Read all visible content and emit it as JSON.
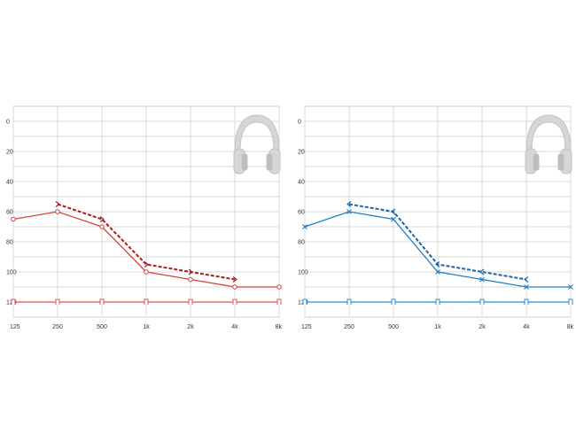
{
  "chart_data": [
    {
      "type": "line",
      "ear": "right",
      "categories": [
        "125",
        "250",
        "500",
        "1k",
        "2k",
        "4k",
        "8k"
      ],
      "y_ticks": [
        "0",
        "20",
        "40",
        "60",
        "80",
        "100",
        "120"
      ],
      "ylim": [
        0,
        120
      ],
      "y_inverted": true,
      "grid": true,
      "series": [
        {
          "style": "solid",
          "marker": "circle",
          "color": "#d0463c",
          "values": [
            65,
            60,
            70,
            100,
            105,
            110,
            110
          ]
        },
        {
          "style": "dashed",
          "marker": "bracket",
          "color": "#a81e1e",
          "values": [
            null,
            55,
            65,
            95,
            100,
            105,
            null
          ]
        },
        {
          "style": "solid",
          "marker": "square-bracket",
          "color": "#e0564a",
          "values": [
            120,
            120,
            120,
            120,
            120,
            120,
            120
          ]
        }
      ],
      "icon": "headphones-icon"
    },
    {
      "type": "line",
      "ear": "left",
      "categories": [
        "125",
        "250",
        "500",
        "1k",
        "2k",
        "4k",
        "8k"
      ],
      "y_ticks": [
        "0",
        "20",
        "40",
        "60",
        "80",
        "100",
        "120"
      ],
      "ylim": [
        0,
        120
      ],
      "y_inverted": true,
      "grid": true,
      "series": [
        {
          "style": "solid",
          "marker": "x",
          "color": "#1f7fc7",
          "values": [
            70,
            60,
            65,
            100,
            105,
            110,
            110
          ]
        },
        {
          "style": "dashed",
          "marker": "bracket",
          "color": "#1565a8",
          "values": [
            null,
            55,
            60,
            95,
            100,
            105,
            null
          ]
        },
        {
          "style": "solid",
          "marker": "square-bracket",
          "color": "#2a8fd6",
          "values": [
            120,
            120,
            120,
            120,
            120,
            120,
            120
          ]
        }
      ],
      "icon": "headphones-icon"
    }
  ]
}
